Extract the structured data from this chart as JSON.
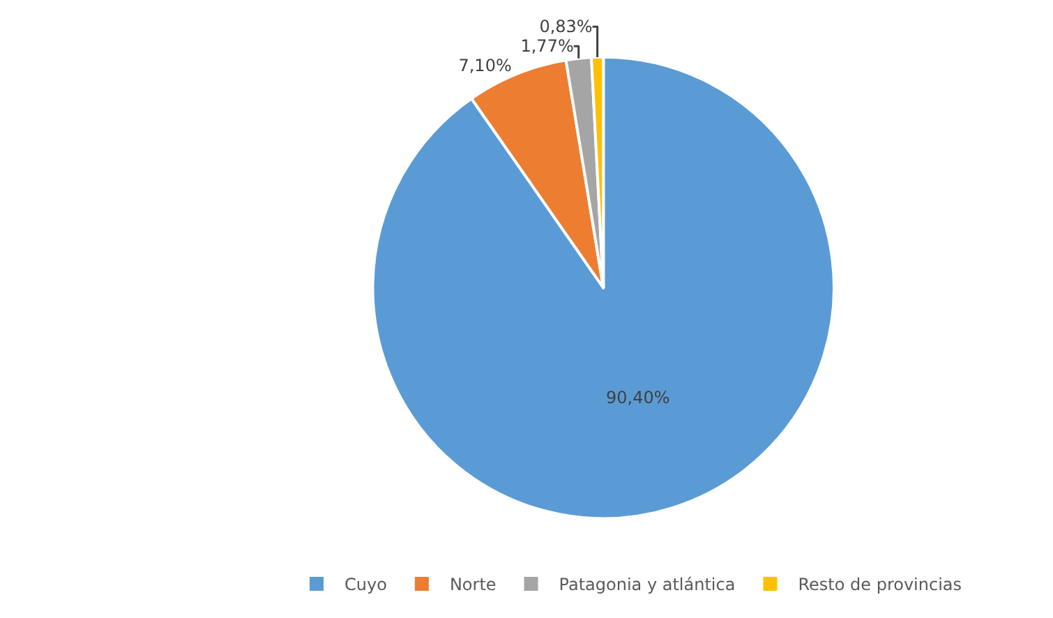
{
  "chart_data": {
    "type": "pie",
    "categories": [
      "Cuyo",
      "Norte",
      "Patagonia y atlántica",
      "Resto de provincias"
    ],
    "values": [
      90.4,
      7.1,
      1.77,
      0.83
    ],
    "colors": [
      "#5b9bd5",
      "#ed7d31",
      "#a5a5a5",
      "#ffc000"
    ],
    "value_labels": [
      "90,40%",
      "7,10%",
      "1,77%",
      "0,83%"
    ],
    "legend": "bottom"
  }
}
